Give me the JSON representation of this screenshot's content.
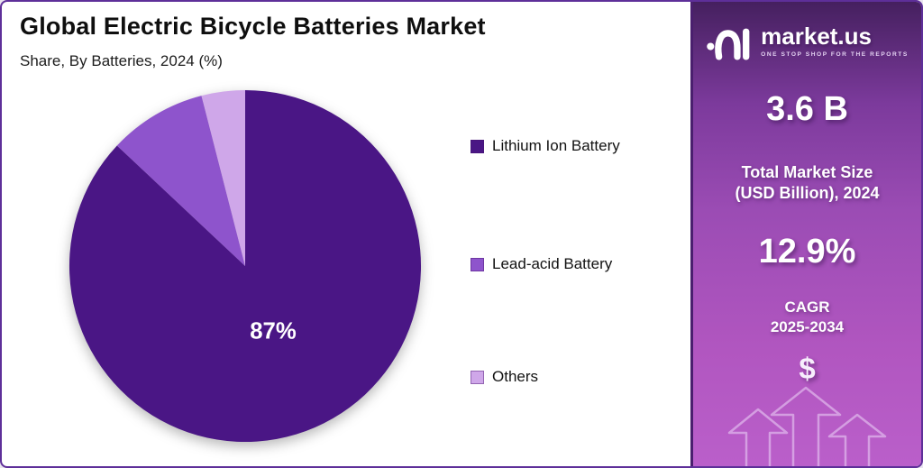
{
  "header": {
    "title": "Global Electric Bicycle Batteries Market",
    "subtitle": "Share, By Batteries, 2024 (%)"
  },
  "chart_data": {
    "type": "pie",
    "title": "Global Electric Bicycle Batteries Market",
    "subtitle": "Share, By Batteries, 2024 (%)",
    "unit": "%",
    "labels": [
      "Lithium Ion Battery",
      "Lead-acid Battery",
      "Others"
    ],
    "values": [
      87,
      9,
      4
    ],
    "colors": [
      "#4a1685",
      "#8e54cc",
      "#cfa7e9"
    ],
    "value_labels": [
      "87%",
      "",
      ""
    ],
    "start_angle_deg": 0,
    "direction": "clockwise",
    "legend_position": "right"
  },
  "sidebar": {
    "brand": {
      "name": "market.us",
      "tagline": "ONE STOP SHOP FOR THE REPORTS"
    },
    "stats": [
      {
        "value": "3.6 B",
        "label_line1": "Total Market Size",
        "label_line2": "(USD Billion), 2024"
      },
      {
        "value": "12.9%",
        "label_line1": "CAGR",
        "label_line2": "2025-2034"
      }
    ],
    "dollar_symbol": "$",
    "gradient_top": "#45205f",
    "gradient_bottom": "#ba5fca"
  }
}
